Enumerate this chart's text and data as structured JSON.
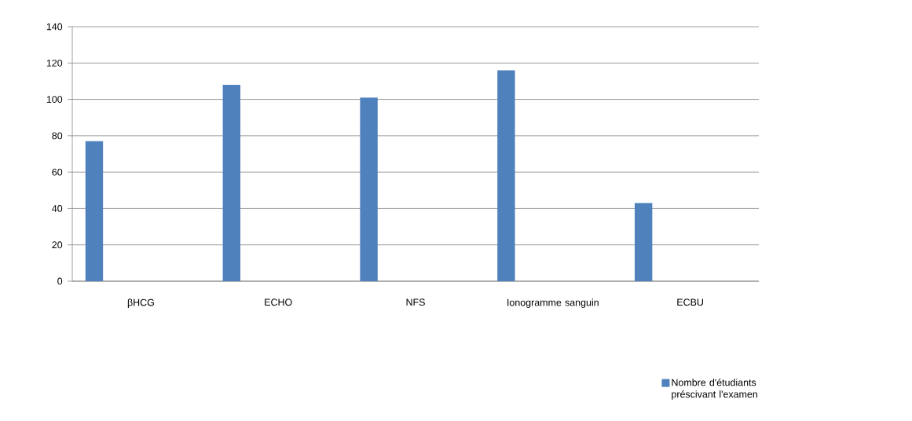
{
  "chart_data": {
    "type": "bar",
    "categories": [
      "βHCG",
      "ECHO",
      "NFS",
      "Ionogramme sanguin",
      "ECBU"
    ],
    "series": [
      {
        "name": "Nombre d'étudiants préscivant l'examen",
        "color": "#4f81bd",
        "values": [
          77,
          108,
          101,
          116,
          43
        ]
      }
    ],
    "ylim": [
      0,
      140
    ],
    "yticks": [
      0,
      20,
      40,
      60,
      80,
      100,
      120,
      140
    ],
    "grid": "y",
    "legend": "bottom right"
  }
}
